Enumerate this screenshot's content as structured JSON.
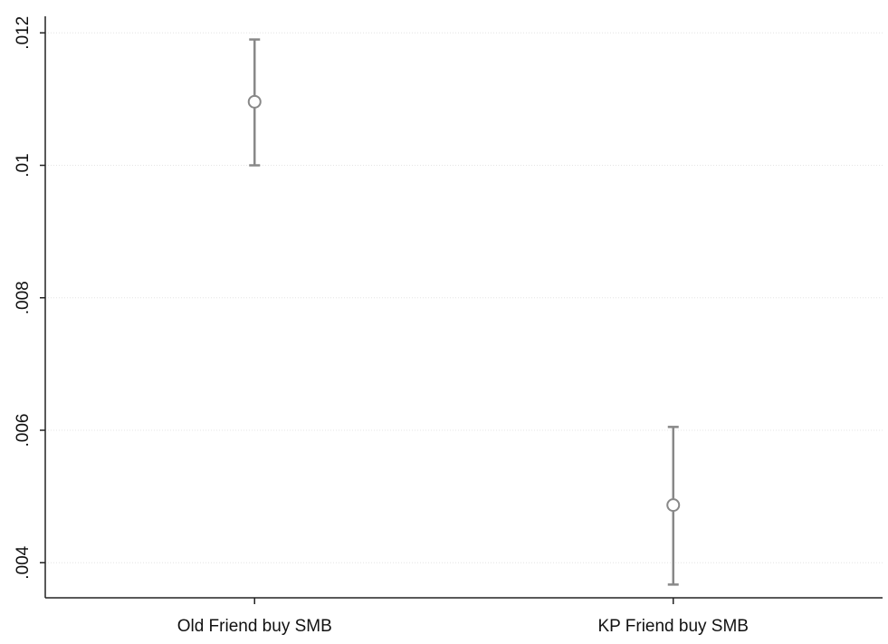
{
  "chart_data": {
    "type": "errorbar",
    "categories": [
      "Old Friend buy SMB",
      "KP Friend buy SMB"
    ],
    "series": [
      {
        "color": "#888888",
        "values": [
          0.01096,
          0.00487
        ],
        "lower": [
          0.01,
          0.00367
        ],
        "upper": [
          0.0119,
          0.00605
        ]
      }
    ],
    "ylim": [
      0.00347,
      0.01225
    ],
    "yticks": [
      {
        "value": 0.004,
        "label": ".004"
      },
      {
        "value": 0.006,
        "label": ".006"
      },
      {
        "value": 0.008,
        "label": ".008"
      },
      {
        "value": 0.01,
        "label": ".01"
      },
      {
        "value": 0.012,
        "label": ".012"
      }
    ],
    "grid": true
  }
}
